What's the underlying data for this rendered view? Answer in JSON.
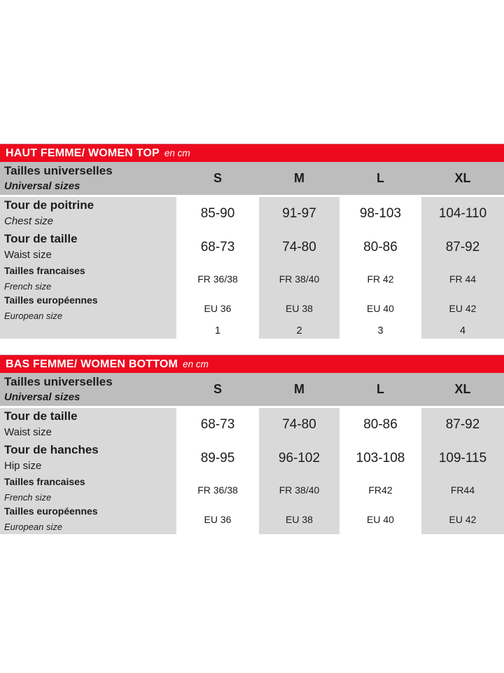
{
  "colors": {
    "accent_red": "#ee0a1e",
    "header_gray": "#bdbdbd",
    "cell_gray": "#d9d9d9",
    "text": "#1c1c1c",
    "band_text": "#ffffff"
  },
  "size_columns": [
    "S",
    "M",
    "L",
    "XL"
  ],
  "tables": [
    {
      "title": "HAUT FEMME/ WOMEN TOP",
      "unit": "en cm",
      "corner_label_fr": "Tailles universelles",
      "corner_label_en": "Universal sizes",
      "rows": [
        {
          "label_fr": "Tour de poitrine",
          "label_en": "Chest size",
          "en_style": "italic",
          "size": "large",
          "values": [
            "85-90",
            "91-97",
            "98-103",
            "104-110"
          ]
        },
        {
          "label_fr": "Tour de taille",
          "label_en": "Waist  size",
          "en_style": "normal",
          "size": "large",
          "values": [
            "68-73",
            "74-80",
            "80-86",
            "87-92"
          ]
        },
        {
          "label_fr": "Tailles francaises",
          "label_en": "French  size",
          "en_style": "italic",
          "size": "small",
          "values": [
            "FR 36/38",
            "FR 38/40",
            "FR 42",
            "FR 44"
          ]
        },
        {
          "label_fr": "Tailles européennes",
          "label_en": "European size",
          "en_style": "italic",
          "size": "small",
          "values": [
            "EU 36",
            "EU 38",
            "EU 40",
            "EU 42"
          ]
        },
        {
          "label_fr": "",
          "label_en": "",
          "en_style": "normal",
          "size": "tiny",
          "values": [
            "1",
            "2",
            "3",
            "4"
          ]
        }
      ]
    },
    {
      "title": "BAS FEMME/ WOMEN BOTTOM",
      "unit": "en cm",
      "corner_label_fr": "Tailles universelles",
      "corner_label_en": "Universal sizes",
      "rows": [
        {
          "label_fr": "Tour de taille",
          "label_en": "Waist  size",
          "en_style": "normal",
          "size": "large",
          "values": [
            "68-73",
            "74-80",
            "80-86",
            "87-92"
          ]
        },
        {
          "label_fr": "Tour de hanches",
          "label_en": "Hip  size",
          "en_style": "normal",
          "size": "large",
          "values": [
            "89-95",
            "96-102",
            "103-108",
            "109-115"
          ]
        },
        {
          "label_fr": "Tailles francaises",
          "label_en": "French  size",
          "en_style": "italic",
          "size": "small",
          "values": [
            "FR 36/38",
            "FR 38/40",
            "FR42",
            "FR44"
          ]
        },
        {
          "label_fr": "Tailles européennes",
          "label_en": "European size",
          "en_style": "italic",
          "size": "small",
          "values": [
            "EU 36",
            "EU 38",
            "EU 40",
            "EU 42"
          ]
        }
      ]
    }
  ]
}
